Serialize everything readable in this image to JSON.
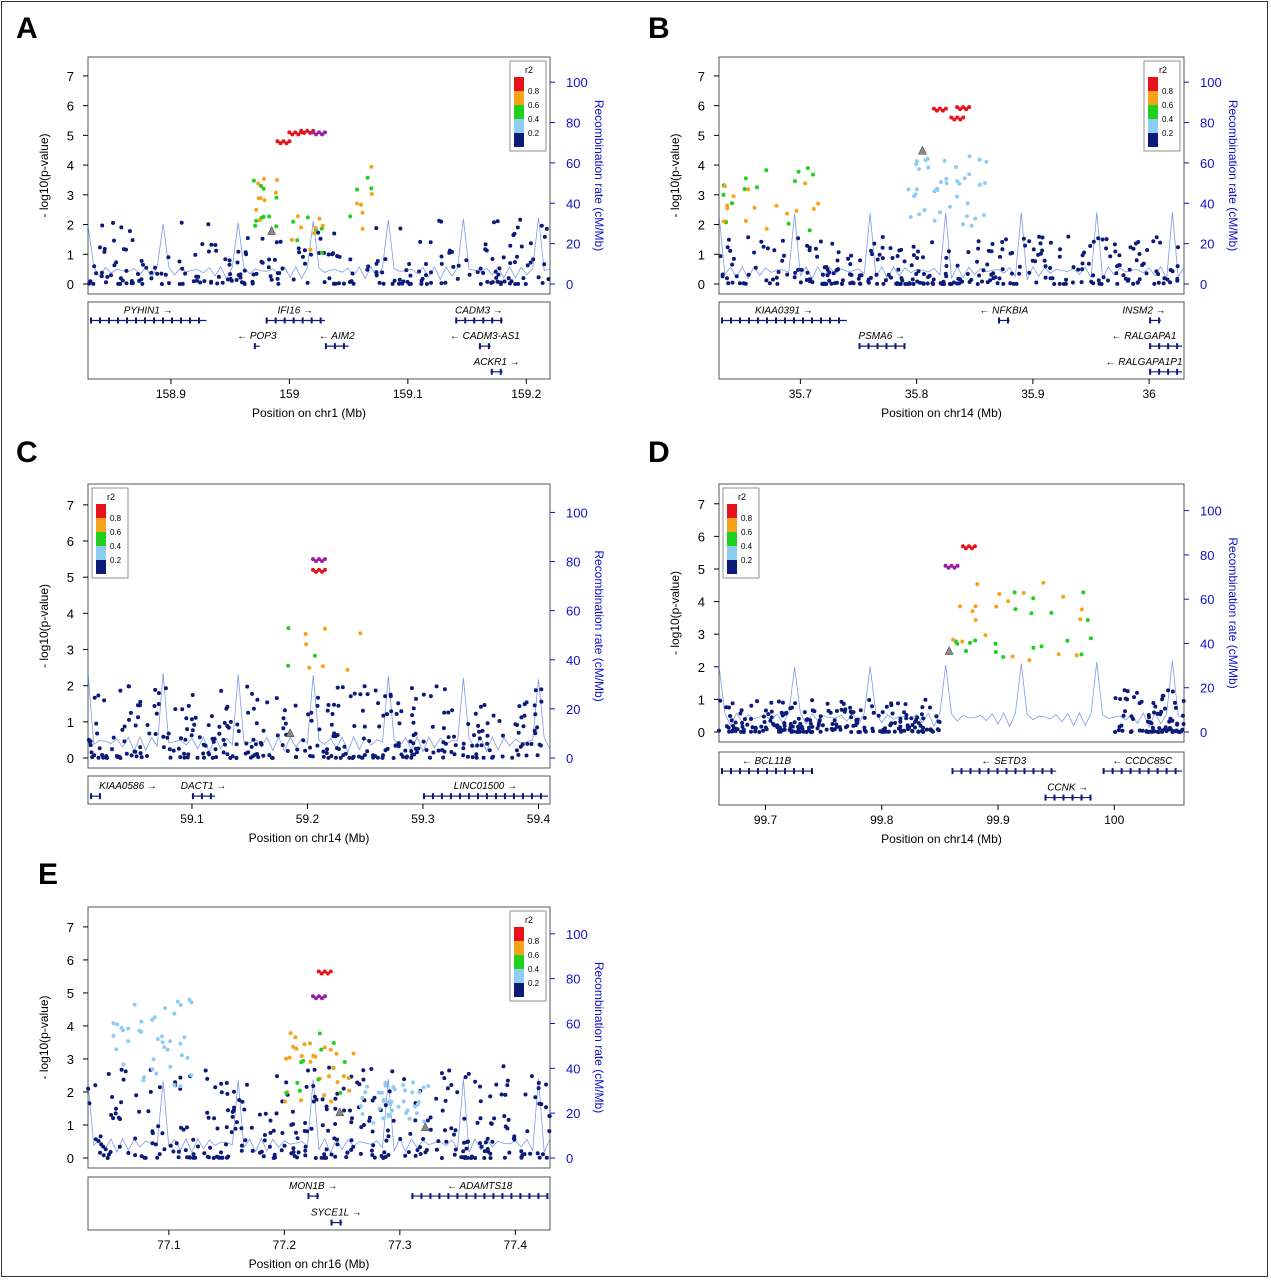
{
  "figure": {
    "common": {
      "ylabel": "- log10(p-value)",
      "y2label": "Recombination rate (cM/Mb)",
      "legend_title": "r2",
      "legend_ticks": [
        "0.8",
        "0.6",
        "0.4",
        "0.2"
      ],
      "legend_colors": [
        "#e8121b",
        "#f5a31b",
        "#1fd01f",
        "#8ecdf2",
        "#0d1b78"
      ],
      "y_ticks": [
        "0",
        "1",
        "2",
        "3",
        "4",
        "5",
        "6",
        "7"
      ],
      "y2_ticks": [
        "0",
        "20",
        "40",
        "60",
        "80",
        "100"
      ],
      "point_color": "#0d1b78",
      "axis_color": "#000000",
      "y2_color": "#1010c8"
    }
  },
  "chart_data": [
    {
      "panel": "A",
      "type": "scatter",
      "xlabel": "Position on chr1 (Mb)",
      "xlim": [
        158.83,
        159.22
      ],
      "x_ticks": [
        "158.9",
        "159",
        "159.1",
        "159.2"
      ],
      "x_tick_values": [
        158.9,
        159.0,
        159.1,
        159.2
      ],
      "ylim": [
        0,
        7
      ],
      "legend_position": "top-right",
      "clusters": [
        {
          "x0": 158.83,
          "x1": 159.22,
          "ymax": 2.2,
          "r2": "low",
          "n": 240
        },
        {
          "x0": 158.97,
          "x1": 158.99,
          "ymax": 3.6,
          "r2": "mid",
          "n": 20
        },
        {
          "x0": 159.0,
          "x1": 159.03,
          "ymax": 2.3,
          "r2": "mid",
          "n": 14
        },
        {
          "x0": 159.05,
          "x1": 159.07,
          "ymax": 4.1,
          "r2": "mid",
          "n": 10
        }
      ],
      "highlight_points": [
        {
          "x": 158.995,
          "y": 4.8,
          "r2": "high"
        },
        {
          "x": 159.005,
          "y": 5.1,
          "r2": "high"
        },
        {
          "x": 159.015,
          "y": 5.15,
          "r2": "high"
        },
        {
          "x": 159.025,
          "y": 5.1,
          "r2": "lead"
        },
        {
          "x": 158.985,
          "y": 1.8,
          "r2": "index"
        }
      ],
      "genes": [
        {
          "name": "PYHIN1",
          "arrow": "right",
          "start": 158.83,
          "end": 158.93,
          "row": 0
        },
        {
          "name": "IFI16",
          "arrow": "right",
          "start": 158.98,
          "end": 159.03,
          "row": 0
        },
        {
          "name": "CADM3",
          "arrow": "right",
          "start": 159.14,
          "end": 159.18,
          "row": 0
        },
        {
          "name": "POP3",
          "arrow": "left",
          "start": 158.97,
          "end": 158.975,
          "row": 1
        },
        {
          "name": "AIM2",
          "arrow": "left",
          "start": 159.03,
          "end": 159.05,
          "row": 1
        },
        {
          "name": "CADM3-AS1",
          "arrow": "left",
          "start": 159.16,
          "end": 159.17,
          "row": 1
        },
        {
          "name": "ACKR1",
          "arrow": "right",
          "start": 159.17,
          "end": 159.18,
          "row": 2
        }
      ]
    },
    {
      "panel": "B",
      "type": "scatter",
      "xlabel": "Position on chr14 (Mb)",
      "xlim": [
        35.63,
        36.03
      ],
      "x_ticks": [
        "35.7",
        "35.8",
        "35.9",
        "36"
      ],
      "x_tick_values": [
        35.7,
        35.8,
        35.9,
        36.0
      ],
      "ylim": [
        0,
        7
      ],
      "legend_position": "top-right",
      "clusters": [
        {
          "x0": 35.63,
          "x1": 36.03,
          "ymax": 1.6,
          "r2": "low",
          "n": 300
        },
        {
          "x0": 35.63,
          "x1": 35.72,
          "ymax": 3.9,
          "r2": "mid",
          "n": 30
        },
        {
          "x0": 35.79,
          "x1": 35.86,
          "ymax": 4.3,
          "r2": "light",
          "n": 40
        }
      ],
      "highlight_points": [
        {
          "x": 35.82,
          "y": 5.9,
          "r2": "high"
        },
        {
          "x": 35.835,
          "y": 5.6,
          "r2": "high"
        },
        {
          "x": 35.84,
          "y": 5.95,
          "r2": "high"
        },
        {
          "x": 35.805,
          "y": 4.5,
          "r2": "index"
        }
      ],
      "genes": [
        {
          "name": "KIAA0391",
          "arrow": "right",
          "start": 35.63,
          "end": 35.74,
          "row": 0
        },
        {
          "name": "NFKBIA",
          "arrow": "left",
          "start": 35.87,
          "end": 35.88,
          "row": 0
        },
        {
          "name": "INSM2",
          "arrow": "right",
          "start": 36.0,
          "end": 36.01,
          "row": 0
        },
        {
          "name": "PSMA6",
          "arrow": "right",
          "start": 35.75,
          "end": 35.79,
          "row": 1
        },
        {
          "name": "RALGAPA1",
          "arrow": "left",
          "start": 36.0,
          "end": 36.03,
          "row": 1
        },
        {
          "name": "RALGAPA1P1",
          "arrow": "left",
          "start": 36.0,
          "end": 36.03,
          "row": 2
        }
      ]
    },
    {
      "panel": "C",
      "type": "scatter",
      "xlabel": "Position on chr14 (Mb)",
      "xlim": [
        59.01,
        59.41
      ],
      "x_ticks": [
        "59.1",
        "59.2",
        "59.3",
        "59.4"
      ],
      "x_tick_values": [
        59.1,
        59.2,
        59.3,
        59.4
      ],
      "ylim": [
        0,
        7
      ],
      "legend_position": "top-left",
      "clusters": [
        {
          "x0": 59.01,
          "x1": 59.41,
          "ymax": 2.0,
          "r2": "low",
          "n": 340
        },
        {
          "x0": 59.18,
          "x1": 59.26,
          "ymax": 3.7,
          "r2": "mid",
          "n": 10
        }
      ],
      "highlight_points": [
        {
          "x": 59.21,
          "y": 5.5,
          "r2": "lead"
        },
        {
          "x": 59.21,
          "y": 5.2,
          "r2": "high"
        },
        {
          "x": 59.185,
          "y": 0.7,
          "r2": "index"
        }
      ],
      "genes": [
        {
          "name": "KIAA0586",
          "arrow": "right",
          "start": 59.01,
          "end": 59.02,
          "row": 0
        },
        {
          "name": "DACT1",
          "arrow": "right",
          "start": 59.1,
          "end": 59.12,
          "row": 0
        },
        {
          "name": "LINC01500",
          "arrow": "right",
          "start": 59.3,
          "end": 59.41,
          "row": 0
        }
      ]
    },
    {
      "panel": "D",
      "type": "scatter",
      "xlabel": "Position on chr14 (Mb)",
      "xlim": [
        99.66,
        100.06
      ],
      "x_ticks": [
        "99.7",
        "99.8",
        "99.9",
        "100"
      ],
      "x_tick_values": [
        99.7,
        99.8,
        99.9,
        100.0
      ],
      "ylim": [
        0,
        7
      ],
      "legend_position": "top-left",
      "clusters": [
        {
          "x0": 99.66,
          "x1": 99.85,
          "ymax": 1.0,
          "r2": "low",
          "n": 220
        },
        {
          "x0": 100.0,
          "x1": 100.06,
          "ymax": 1.3,
          "r2": "low",
          "n": 80
        },
        {
          "x0": 99.86,
          "x1": 99.98,
          "ymax": 4.6,
          "r2": "mid",
          "n": 40
        }
      ],
      "highlight_points": [
        {
          "x": 99.86,
          "y": 5.1,
          "r2": "lead"
        },
        {
          "x": 99.875,
          "y": 5.7,
          "r2": "high"
        },
        {
          "x": 99.858,
          "y": 2.5,
          "r2": "index"
        }
      ],
      "genes": [
        {
          "name": "BCL11B",
          "arrow": "left",
          "start": 99.66,
          "end": 99.74,
          "row": 0
        },
        {
          "name": "SETD3",
          "arrow": "left",
          "start": 99.86,
          "end": 99.95,
          "row": 0
        },
        {
          "name": "CCDC85C",
          "arrow": "left",
          "start": 99.99,
          "end": 100.06,
          "row": 0
        },
        {
          "name": "CCNK",
          "arrow": "right",
          "start": 99.94,
          "end": 99.98,
          "row": 1
        }
      ]
    },
    {
      "panel": "E",
      "type": "scatter",
      "xlabel": "Position on chr16 (Mb)",
      "xlim": [
        77.03,
        77.43
      ],
      "x_ticks": [
        "77.1",
        "77.2",
        "77.3",
        "77.4"
      ],
      "x_tick_values": [
        77.1,
        77.2,
        77.3,
        77.4
      ],
      "ylim": [
        0,
        7
      ],
      "legend_position": "top-right",
      "clusters": [
        {
          "x0": 77.03,
          "x1": 77.43,
          "ymax": 2.8,
          "r2": "low",
          "n": 340
        },
        {
          "x0": 77.05,
          "x1": 77.12,
          "ymax": 4.8,
          "r2": "light",
          "n": 40
        },
        {
          "x0": 77.2,
          "x1": 77.26,
          "ymax": 3.8,
          "r2": "mid",
          "n": 40
        },
        {
          "x0": 77.26,
          "x1": 77.33,
          "ymax": 2.3,
          "r2": "light",
          "n": 40
        }
      ],
      "highlight_points": [
        {
          "x": 77.235,
          "y": 5.65,
          "r2": "high"
        },
        {
          "x": 77.23,
          "y": 4.9,
          "r2": "lead"
        },
        {
          "x": 77.248,
          "y": 1.4,
          "r2": "index"
        },
        {
          "x": 77.322,
          "y": 0.95,
          "r2": "index"
        }
      ],
      "genes": [
        {
          "name": "MON1B",
          "arrow": "right",
          "start": 77.22,
          "end": 77.23,
          "row": 0
        },
        {
          "name": "ADAMTS18",
          "arrow": "left",
          "start": 77.31,
          "end": 77.43,
          "row": 0
        },
        {
          "name": "SYCE1L",
          "arrow": "right",
          "start": 77.24,
          "end": 77.25,
          "row": 1
        }
      ]
    }
  ]
}
